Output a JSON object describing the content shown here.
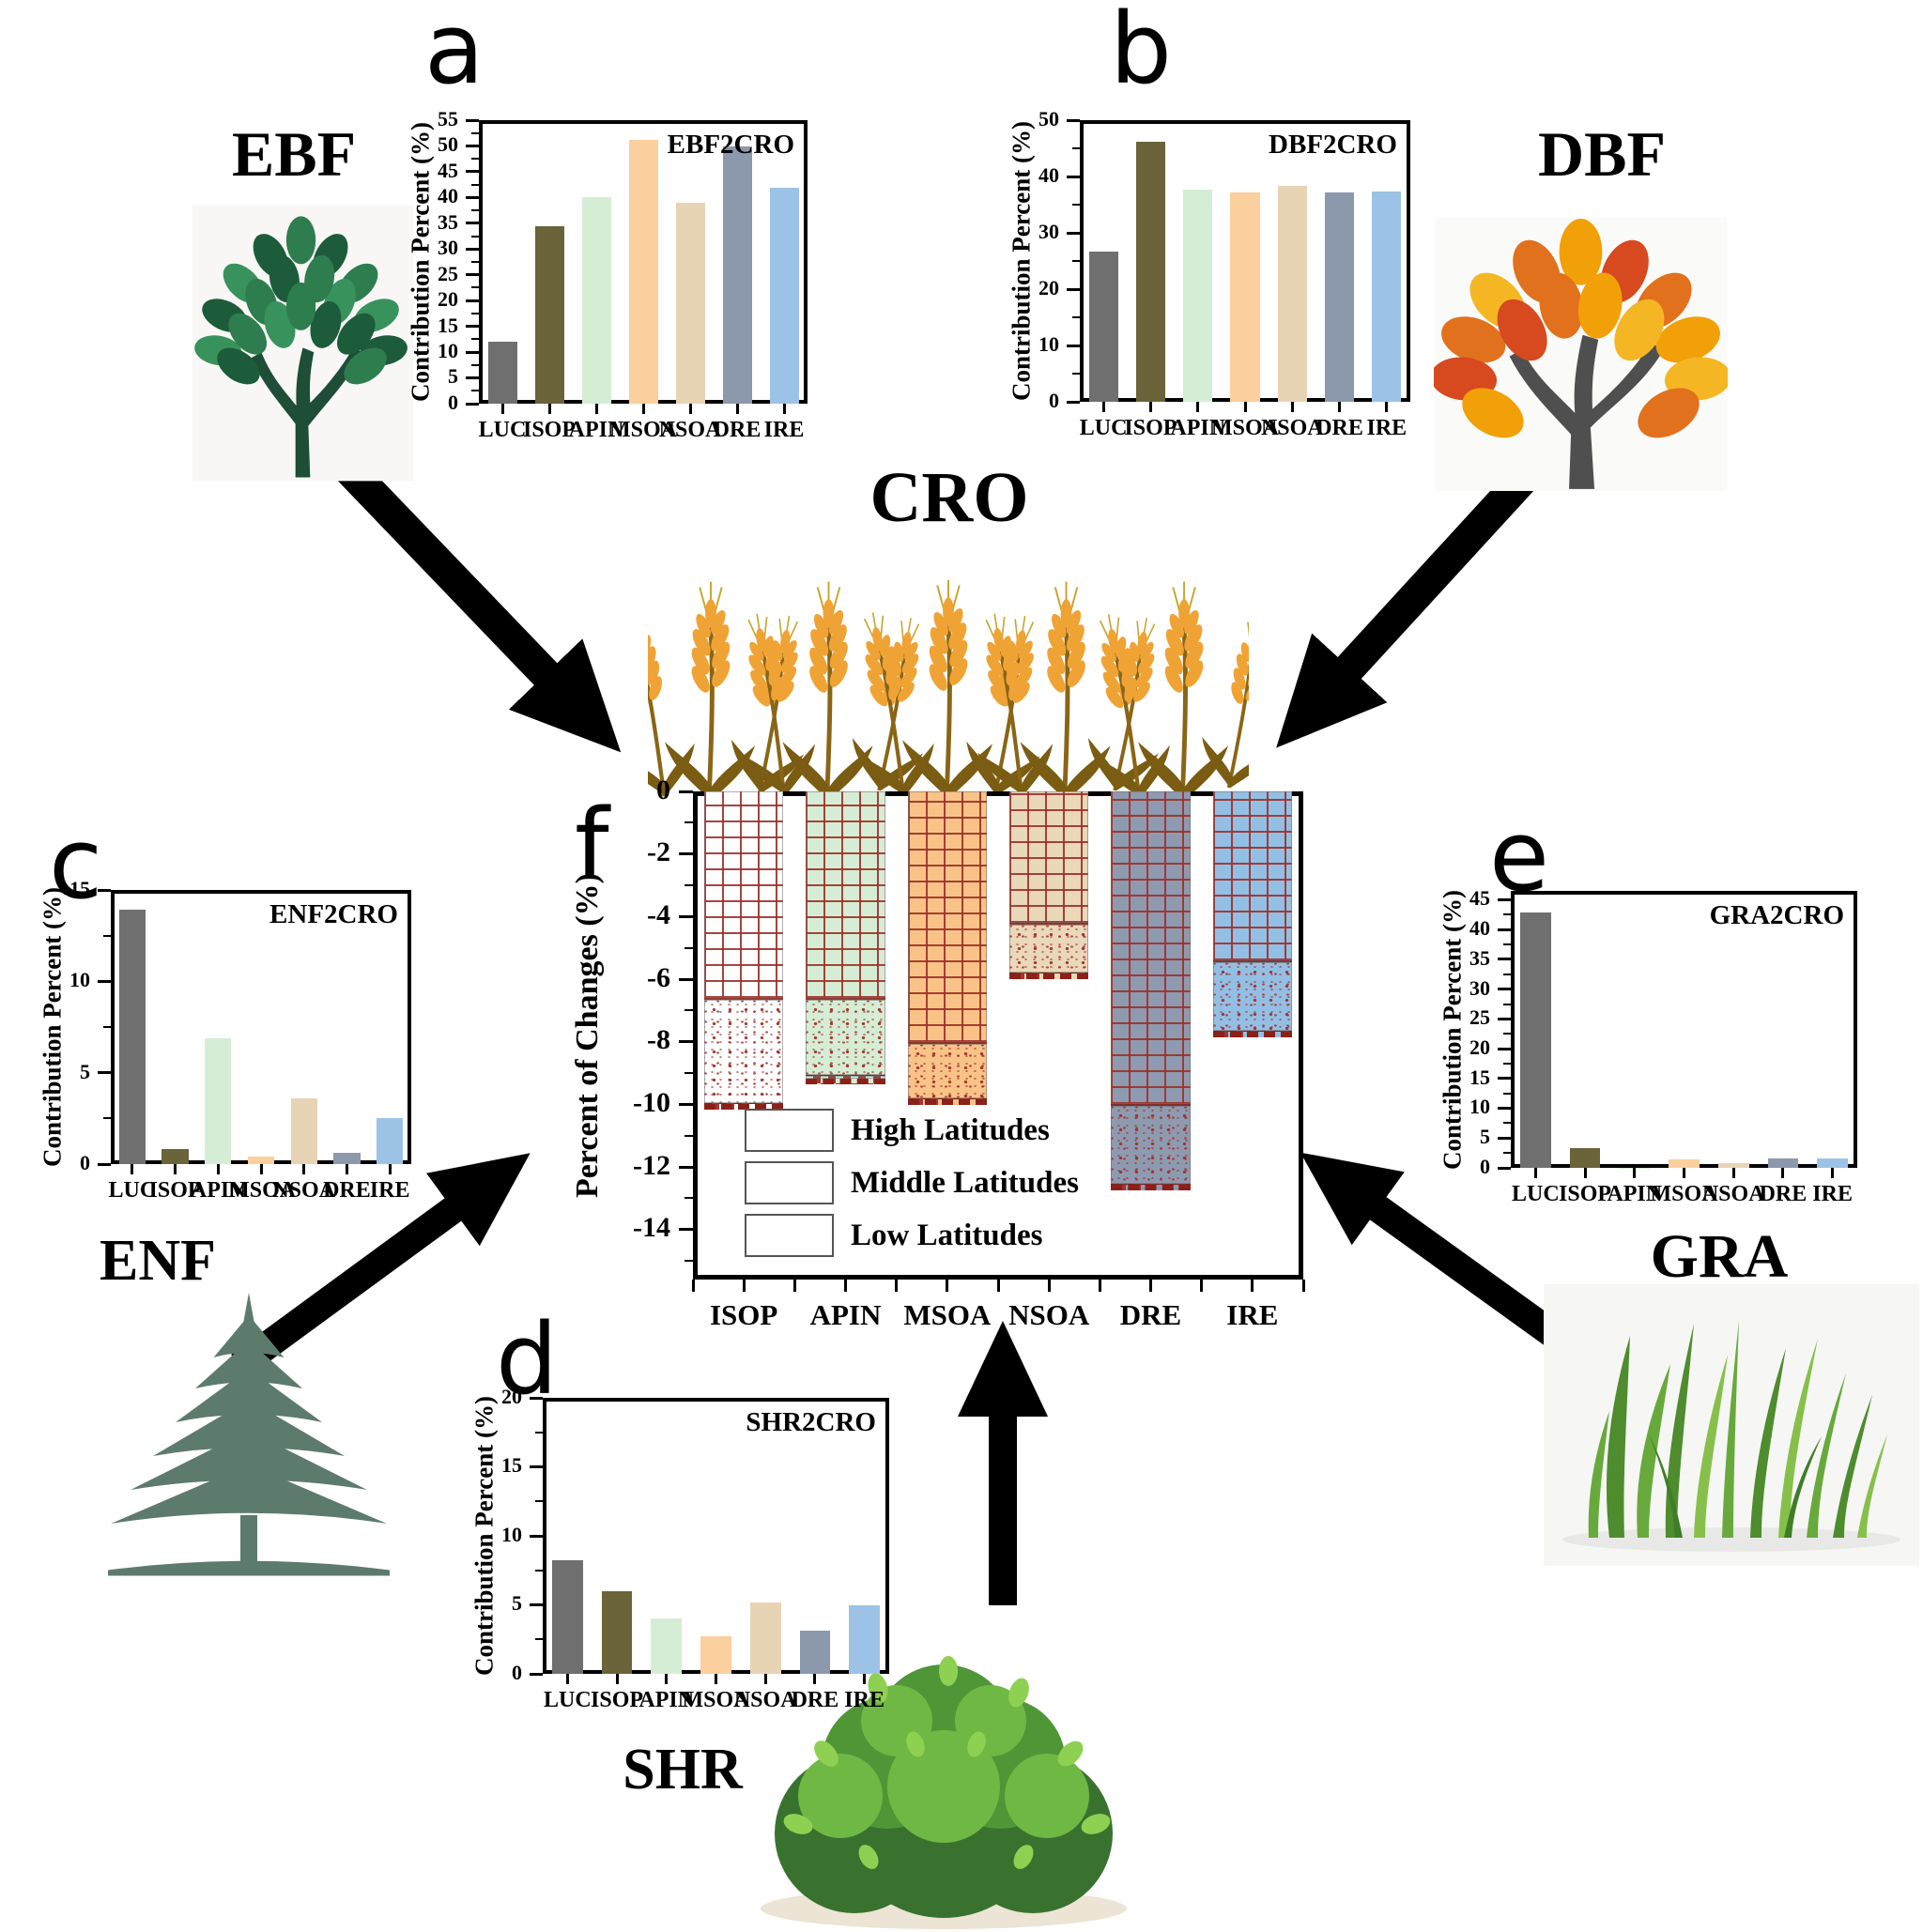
{
  "figure": {
    "background": "#ffffff"
  },
  "letters": {
    "a": "a",
    "b": "b",
    "c": "c",
    "d": "d",
    "e": "e",
    "f": "f"
  },
  "nodes": {
    "ebf": "EBF",
    "dbf": "DBF",
    "enf": "ENF",
    "shr": "SHR",
    "gra": "GRA",
    "cro": "CRO"
  },
  "pollutants": [
    "LUC",
    "ISOP",
    "APIN",
    "MSOA",
    "NSOA",
    "DRE",
    "IRE"
  ],
  "colors": {
    "bar": {
      "LUC": "#6f6f6f",
      "ISOP": "#6b6339",
      "APIN": "#d6edd5",
      "MSOA": "#fbcf9e",
      "NSOA": "#e7d4b5",
      "DRE": "#8c98ac",
      "IRE": "#9cc3e6"
    },
    "f_fill": {
      "ISOP": "#ffffff",
      "APIN": "#d6edd5",
      "MSOA": "#f9c388",
      "NSOA": "#ead8ba",
      "DRE": "#8e9ab0",
      "IRE": "#94bfe4"
    },
    "pattern_red": "#9e2f28",
    "arrow": "#000000"
  },
  "chart_data": [
    {
      "id": "a",
      "type": "bar",
      "tag": "EBF2CRO",
      "ylabel": "Contribution Percent (%)",
      "ylim": [
        0,
        55
      ],
      "label_step": 5,
      "categories": [
        "LUC",
        "ISOP",
        "APIN",
        "MSOA",
        "NSOA",
        "DRE",
        "IRE"
      ],
      "values": [
        12.0,
        34.4,
        40.1,
        51.2,
        39.0,
        49.9,
        41.9
      ]
    },
    {
      "id": "b",
      "type": "bar",
      "tag": "DBF2CRO",
      "ylabel": "Contribution Percent (%)",
      "ylim": [
        0,
        50
      ],
      "label_step": 10,
      "categories": [
        "LUC",
        "ISOP",
        "APIN",
        "MSOA",
        "NSOA",
        "DRE",
        "IRE"
      ],
      "values": [
        26.7,
        46.2,
        37.6,
        37.2,
        38.4,
        37.2,
        37.4
      ]
    },
    {
      "id": "c",
      "type": "bar",
      "tag": "ENF2CRO",
      "ylabel": "Contribution Percent (%)",
      "ylim": [
        0,
        15
      ],
      "label_step": 5,
      "categories": [
        "LUC",
        "ISOP",
        "APIN",
        "MSOA",
        "NSOA",
        "DRE",
        "IRE"
      ],
      "values": [
        13.9,
        0.8,
        6.9,
        0.4,
        3.6,
        0.6,
        2.5
      ]
    },
    {
      "id": "d",
      "type": "bar",
      "tag": "SHR2CRO",
      "ylabel": "Contribution Percent (%)",
      "ylim": [
        0,
        20
      ],
      "label_step": 5,
      "categories": [
        "LUC",
        "ISOP",
        "APIN",
        "MSOA",
        "NSOA",
        "DRE",
        "IRE"
      ],
      "values": [
        8.2,
        6.0,
        4.0,
        2.7,
        5.2,
        3.1,
        5.0
      ]
    },
    {
      "id": "e",
      "type": "bar",
      "tag": "GRA2CRO",
      "ylabel": "Contribution Percent (%)",
      "ylim": [
        0,
        46.5
      ],
      "label_max": 45,
      "label_step": 5,
      "categories": [
        "LUC",
        "ISOP",
        "APIN",
        "MSOA",
        "NSOA",
        "DRE",
        "IRE"
      ],
      "values": [
        42.8,
        3.3,
        0.05,
        1.4,
        0.8,
        1.5,
        1.5
      ]
    },
    {
      "id": "f",
      "type": "stacked-bar",
      "ylabel": "Percent of Changes (%)",
      "ylim": [
        -15.6,
        0
      ],
      "label_min": -14,
      "label_step": 2,
      "categories": [
        "ISOP",
        "APIN",
        "MSOA",
        "NSOA",
        "DRE",
        "IRE"
      ],
      "series": [
        {
          "name": "Low Latitudes",
          "pattern": "grid",
          "values": [
            -6.6,
            -6.6,
            -8.0,
            -4.2,
            -10.0,
            -5.4
          ]
        },
        {
          "name": "Middle Latitudes",
          "pattern": "speckle",
          "values": [
            -3.35,
            -2.45,
            -1.8,
            -1.6,
            -2.55,
            -2.25
          ]
        },
        {
          "name": "High Latitudes",
          "pattern": "checker",
          "values": [
            -0.15,
            -0.3,
            -0.2,
            -0.2,
            -0.15,
            -0.15
          ]
        }
      ],
      "totals": [
        -10.1,
        -9.35,
        -10.0,
        -6.0,
        -12.7,
        -7.8
      ],
      "legend": [
        "High Latitudes",
        "Middle Latitudes",
        "Low Latitudes"
      ],
      "legend_position": "bottom-left"
    }
  ]
}
